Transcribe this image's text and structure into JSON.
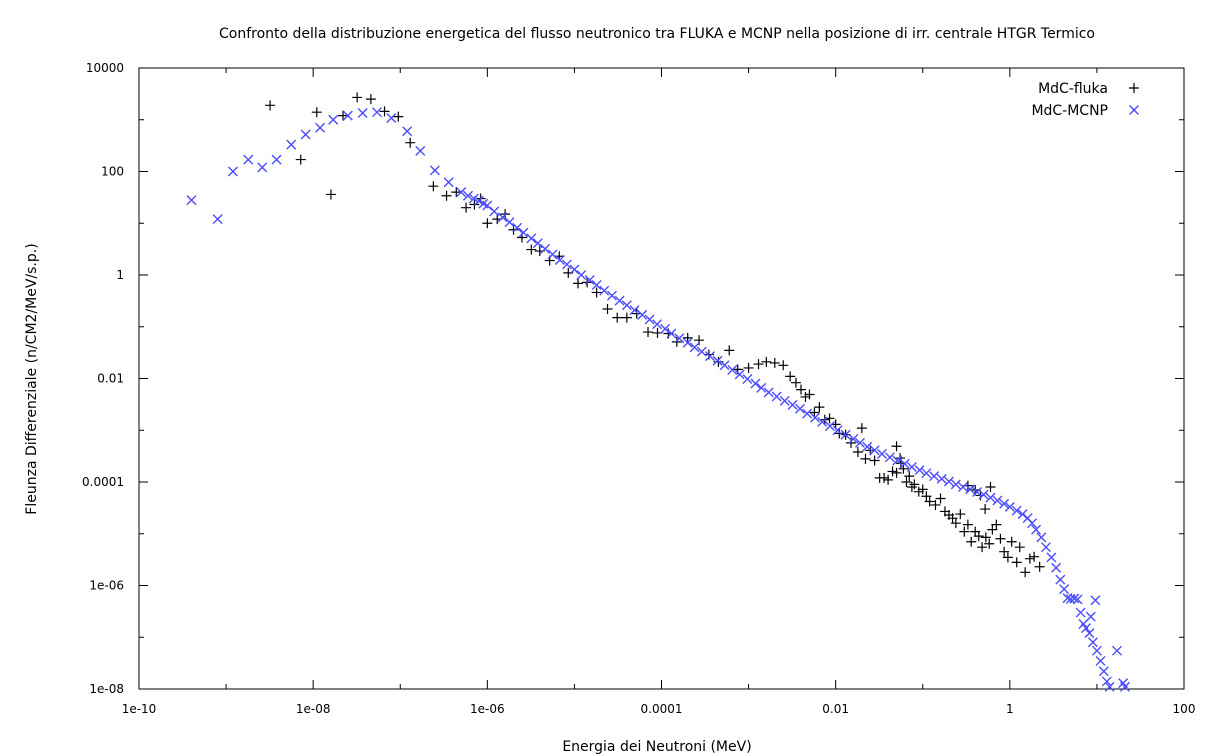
{
  "chart_data": {
    "type": "scatter",
    "title": "Confronto della distribuzione energetica del flusso neutronico tra FLUKA e MCNP nella posizione di irr. centrale HTGR Termico",
    "xlabel": "Energia dei Neutroni (MeV)",
    "ylabel": "Fleunza Differenziale (n/CM2/MeV/s.p.)",
    "xscale": "log",
    "yscale": "log",
    "xlim": [
      1e-10,
      100
    ],
    "ylim": [
      1e-08,
      10000
    ],
    "x_ticks": [
      "1e-10",
      "1e-08",
      "1e-06",
      "0.0001",
      "0.01",
      "1",
      "100"
    ],
    "y_ticks": [
      "10000",
      "100",
      "1",
      "0.01",
      "0.0001",
      "1e-06",
      "1e-08"
    ],
    "legend_position": "top-right",
    "grid": false,
    "series": [
      {
        "name": "MdC-fluka",
        "marker": "plus",
        "color": "#000000",
        "points": [
          [
            3.2e-09,
            1900
          ],
          [
            1.1e-08,
            1400
          ],
          [
            7.2e-09,
            170
          ],
          [
            1.6e-08,
            36
          ],
          [
            2.2e-08,
            1200
          ],
          [
            3.2e-08,
            2700
          ],
          [
            4.6e-08,
            2500
          ],
          [
            6.6e-08,
            1450
          ],
          [
            9.5e-08,
            1150
          ],
          [
            1.3e-07,
            360
          ],
          [
            2.4e-07,
            52
          ],
          [
            3.4e-07,
            34
          ],
          [
            4.4e-07,
            40
          ],
          [
            5.7e-07,
            20
          ],
          [
            7.1e-07,
            23
          ],
          [
            8.4e-07,
            30
          ],
          [
            1e-06,
            10
          ],
          [
            1.3e-06,
            12
          ],
          [
            1.6e-06,
            15
          ],
          [
            2e-06,
            7.5
          ],
          [
            2.5e-06,
            5.3
          ],
          [
            3.2e-06,
            3.1
          ],
          [
            4e-06,
            2.9
          ],
          [
            5.2e-06,
            1.9
          ],
          [
            6.7e-06,
            2.3
          ],
          [
            8.5e-06,
            1.1
          ],
          [
            1.1e-05,
            0.69
          ],
          [
            1.4e-05,
            0.72
          ],
          [
            1.8e-05,
            0.46
          ],
          [
            2.4e-05,
            0.22
          ],
          [
            3.1e-05,
            0.15
          ],
          [
            4e-05,
            0.15
          ],
          [
            5.2e-05,
            0.18
          ],
          [
            7e-05,
            0.079
          ],
          [
            9e-05,
            0.076
          ],
          [
            0.00012,
            0.074
          ],
          [
            0.00015,
            0.051
          ],
          [
            0.0002,
            0.061
          ],
          [
            0.00027,
            0.055
          ],
          [
            0.00035,
            0.029
          ],
          [
            0.00045,
            0.021
          ],
          [
            0.0006,
            0.035
          ],
          [
            0.00075,
            0.015
          ],
          [
            0.001,
            0.016
          ],
          [
            0.0013,
            0.019
          ],
          [
            0.0016,
            0.021
          ],
          [
            0.002,
            0.02
          ],
          [
            0.0025,
            0.018
          ],
          [
            0.003,
            0.011
          ],
          [
            0.0035,
            0.0083
          ],
          [
            0.004,
            0.0061
          ],
          [
            0.0045,
            0.0044
          ],
          [
            0.005,
            0.0049
          ],
          [
            0.0057,
            0.0022
          ],
          [
            0.0065,
            0.0028
          ],
          [
            0.0075,
            0.0016
          ],
          [
            0.0085,
            0.0017
          ],
          [
            0.01,
            0.0013
          ],
          [
            0.011,
            0.00087
          ],
          [
            0.013,
            0.00082
          ],
          [
            0.015,
            0.00057
          ],
          [
            0.018,
            0.00038
          ],
          [
            0.02,
            0.0011
          ],
          [
            0.022,
            0.00028
          ],
          [
            0.025,
            0.00041
          ],
          [
            0.028,
            0.00026
          ],
          [
            0.032,
            0.00012
          ],
          [
            0.036,
            0.00012
          ],
          [
            0.04,
            0.00011
          ],
          [
            0.045,
            0.00016
          ],
          [
            0.05,
            0.00015
          ],
          [
            0.055,
            0.00029
          ],
          [
            0.05,
            0.00049
          ],
          [
            0.056,
            0.00023
          ],
          [
            0.06,
            0.00018
          ],
          [
            0.065,
            0.0001
          ],
          [
            0.07,
            0.00013
          ],
          [
            0.075,
            8e-05
          ],
          [
            0.08,
            9e-05
          ],
          [
            0.09,
            6.5e-05
          ],
          [
            0.1,
            7.2e-05
          ],
          [
            0.11,
            5.3e-05
          ],
          [
            0.12,
            4.2e-05
          ],
          [
            0.14,
            3.6e-05
          ],
          [
            0.16,
            4.8e-05
          ],
          [
            0.18,
            2.7e-05
          ],
          [
            0.2,
            2.3e-05
          ],
          [
            0.22,
            2e-05
          ],
          [
            0.24,
            1.6e-05
          ],
          [
            0.27,
            2.4e-05
          ],
          [
            0.3,
            1.1e-05
          ],
          [
            0.33,
            1.5e-05
          ],
          [
            0.36,
            7e-06
          ],
          [
            0.4,
            1.1e-05
          ],
          [
            0.44,
            9e-06
          ],
          [
            0.48,
            5.5e-06
          ],
          [
            0.53,
            8.5e-06
          ],
          [
            0.58,
            6.4e-06
          ],
          [
            0.63,
            1.2e-05
          ],
          [
            0.7,
            1.5e-05
          ],
          [
            0.78,
            8e-06
          ],
          [
            0.86,
            4.5e-06
          ],
          [
            0.95,
            3.5e-06
          ],
          [
            1.05,
            7e-06
          ],
          [
            1.2,
            2.8e-06
          ],
          [
            1.3,
            5.5e-06
          ],
          [
            1.5,
            1.8e-06
          ],
          [
            1.7,
            3.3e-06
          ],
          [
            1.9,
            3.6e-06
          ],
          [
            2.2,
            2.3e-06
          ],
          [
            0.33,
            8.5e-05
          ],
          [
            0.4,
            7e-05
          ],
          [
            0.46,
            5.5e-05
          ],
          [
            0.52,
            3e-05
          ],
          [
            0.6,
            8e-05
          ]
        ]
      },
      {
        "name": "MdC-MCNP",
        "marker": "cross",
        "color": "#4b4bff",
        "points": [
          [
            4e-10,
            28
          ],
          [
            8e-10,
            12
          ],
          [
            1.2e-09,
            100
          ],
          [
            1.8e-09,
            170
          ],
          [
            2.6e-09,
            120
          ],
          [
            3.8e-09,
            170
          ],
          [
            5.6e-09,
            330
          ],
          [
            8.2e-09,
            520
          ],
          [
            1.2e-08,
            700
          ],
          [
            1.7e-08,
            1000
          ],
          [
            2.5e-08,
            1200
          ],
          [
            3.7e-08,
            1350
          ],
          [
            5.4e-08,
            1400
          ],
          [
            7.9e-08,
            1080
          ],
          [
            1.2e-07,
            600
          ],
          [
            1.7e-07,
            250
          ],
          [
            2.5e-07,
            105
          ],
          [
            3.6e-07,
            62
          ],
          [
            5e-07,
            40
          ],
          [
            6e-07,
            34
          ],
          [
            7e-07,
            30
          ],
          [
            8e-07,
            27
          ],
          [
            9e-07,
            24
          ],
          [
            1e-06,
            22
          ],
          [
            1.2e-06,
            17
          ],
          [
            1.5e-06,
            13
          ],
          [
            1.8e-06,
            10.5
          ],
          [
            2.2e-06,
            8.2
          ],
          [
            2.6e-06,
            6.6
          ],
          [
            3.2e-06,
            5.1
          ],
          [
            3.8e-06,
            4.1
          ],
          [
            4.6e-06,
            3.2
          ],
          [
            5.6e-06,
            2.5
          ],
          [
            6.8e-06,
            1.95
          ],
          [
            8.2e-06,
            1.6
          ],
          [
            1e-05,
            1.28
          ],
          [
            1.2e-05,
            1.0
          ],
          [
            1.5e-05,
            0.8
          ],
          [
            1.8e-05,
            0.64
          ],
          [
            2.2e-05,
            0.5
          ],
          [
            2.7e-05,
            0.4
          ],
          [
            3.3e-05,
            0.32
          ],
          [
            4e-05,
            0.26
          ],
          [
            4.9e-05,
            0.21
          ],
          [
            6e-05,
            0.17
          ],
          [
            7.3e-05,
            0.138
          ],
          [
            8.9e-05,
            0.112
          ],
          [
            0.00011,
            0.091
          ],
          [
            0.00013,
            0.074
          ],
          [
            0.00016,
            0.06
          ],
          [
            0.0002,
            0.049
          ],
          [
            0.00024,
            0.04
          ],
          [
            0.00029,
            0.033
          ],
          [
            0.00036,
            0.027
          ],
          [
            0.00044,
            0.022
          ],
          [
            0.00053,
            0.018
          ],
          [
            0.00065,
            0.0147
          ],
          [
            0.00079,
            0.012
          ],
          [
            0.00097,
            0.0098
          ],
          [
            0.0012,
            0.008
          ],
          [
            0.0014,
            0.0066
          ],
          [
            0.0017,
            0.0054
          ],
          [
            0.0021,
            0.0045
          ],
          [
            0.0026,
            0.0037
          ],
          [
            0.0032,
            0.0031
          ],
          [
            0.0039,
            0.0026
          ],
          [
            0.0047,
            0.0021
          ],
          [
            0.0058,
            0.00175
          ],
          [
            0.007,
            0.00145
          ],
          [
            0.0086,
            0.0012
          ],
          [
            0.0105,
            0.001
          ],
          [
            0.013,
            0.00082
          ],
          [
            0.016,
            0.00068
          ],
          [
            0.019,
            0.00057
          ],
          [
            0.023,
            0.00048
          ],
          [
            0.028,
            0.00041
          ],
          [
            0.034,
            0.00035
          ],
          [
            0.042,
            0.0003
          ],
          [
            0.051,
            0.00026
          ],
          [
            0.062,
            0.000225
          ],
          [
            0.075,
            0.000195
          ],
          [
            0.092,
            0.00017
          ],
          [
            0.11,
            0.000148
          ],
          [
            0.135,
            0.00013
          ],
          [
            0.165,
            0.000115
          ],
          [
            0.2,
            0.000102
          ],
          [
            0.24,
            9e-05
          ],
          [
            0.29,
            8e-05
          ],
          [
            0.35,
            7.2e-05
          ],
          [
            0.42,
            6.4e-05
          ],
          [
            0.5,
            5.7e-05
          ],
          [
            0.6,
            5e-05
          ],
          [
            0.72,
            4.4e-05
          ],
          [
            0.86,
            3.8e-05
          ],
          [
            1.0,
            3.3e-05
          ],
          [
            1.2,
            2.8e-05
          ],
          [
            1.4,
            2.4e-05
          ],
          [
            1.6,
            2e-05
          ],
          [
            1.8,
            1.6e-05
          ],
          [
            2.0,
            1.2e-05
          ],
          [
            2.3,
            8.5e-06
          ],
          [
            2.6,
            5.5e-06
          ],
          [
            3.0,
            3.5e-06
          ],
          [
            3.4,
            2.2e-06
          ],
          [
            3.8,
            1.3e-06
          ],
          [
            4.2,
            8.5e-07
          ],
          [
            4.6,
            5.7e-07
          ],
          [
            5.0,
            5.5e-07
          ],
          [
            5.5,
            5.6e-07
          ],
          [
            6.0,
            5.4e-07
          ],
          [
            6.5,
            3e-07
          ],
          [
            7.0,
            1.8e-07
          ],
          [
            7.5,
            1.5e-07
          ],
          [
            8.2,
            1.2e-07
          ],
          [
            9.0,
            8e-08
          ],
          [
            10.0,
            5.5e-08
          ],
          [
            11.0,
            3.5e-08
          ],
          [
            12.0,
            2.2e-08
          ],
          [
            13.0,
            1.4e-08
          ],
          [
            14.0,
            1.1e-08
          ],
          [
            17.0,
            5.5e-08
          ],
          [
            20.0,
            1.3e-08
          ],
          [
            21.0,
            1.1e-08
          ],
          [
            9.6,
            5.2e-07
          ],
          [
            8.5,
            2.5e-07
          ]
        ]
      }
    ]
  }
}
